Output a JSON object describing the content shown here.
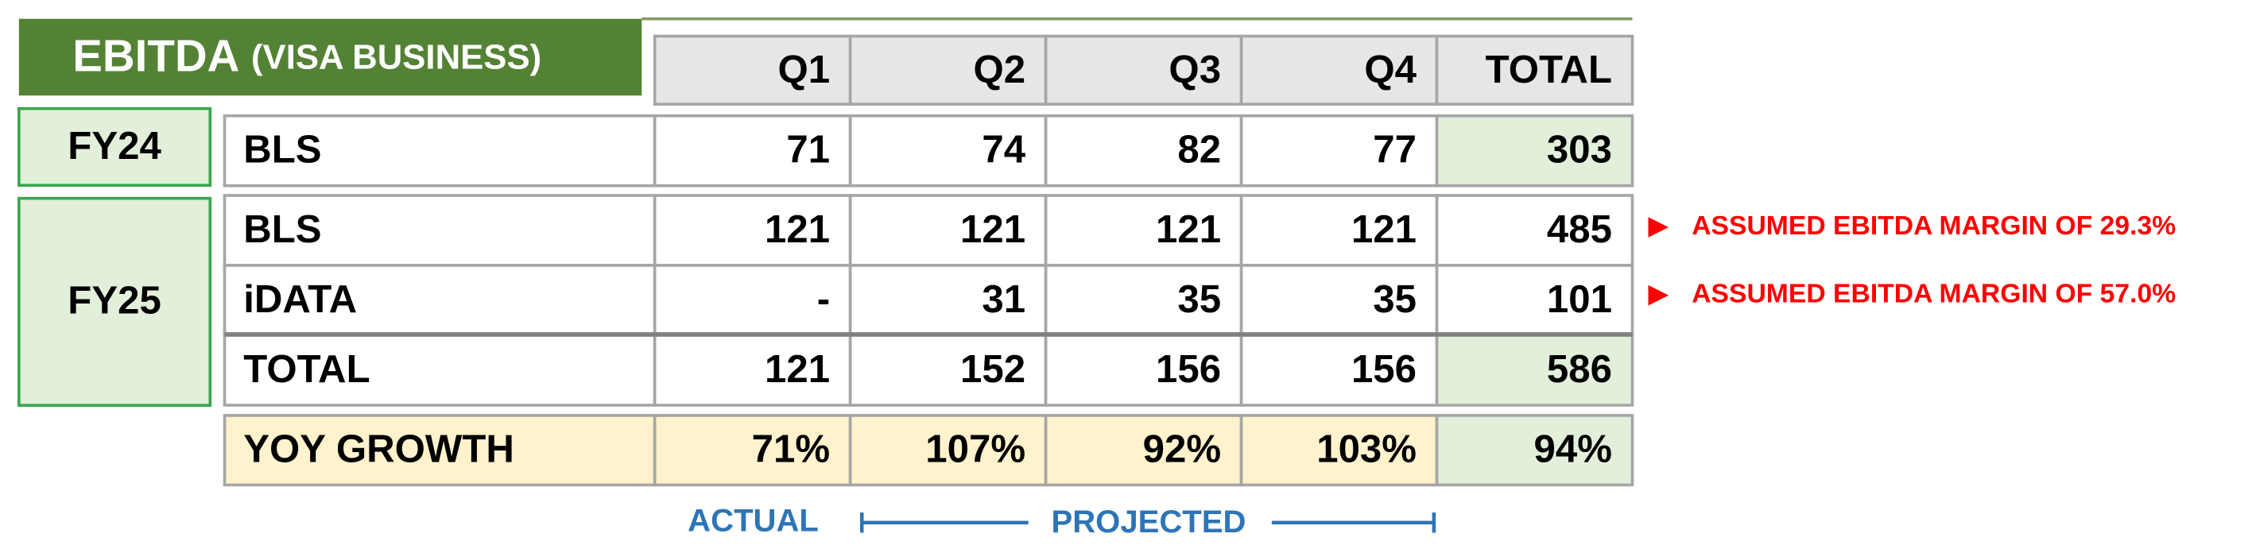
{
  "title": {
    "main": "EBITDA",
    "sub": "(VISA BUSINESS)"
  },
  "table": {
    "columns": [
      "Q1",
      "Q2",
      "Q3",
      "Q4",
      "TOTAL"
    ],
    "groups": [
      {
        "label": "FY24",
        "rows": [
          {
            "label": "BLS",
            "cells": [
              "71",
              "74",
              "82",
              "77",
              "303"
            ]
          }
        ]
      },
      {
        "label": "FY25",
        "rows": [
          {
            "label": "BLS",
            "cells": [
              "121",
              "121",
              "121",
              "121",
              "485"
            ]
          },
          {
            "label": "iDATA",
            "cells": [
              "-",
              "31",
              "35",
              "35",
              "101"
            ]
          },
          {
            "label": "TOTAL",
            "cells": [
              "121",
              "152",
              "156",
              "156",
              "586"
            ]
          }
        ]
      }
    ],
    "growth": {
      "label": "YOY GROWTH",
      "cells": [
        "71%",
        "107%",
        "92%",
        "103%",
        "94%"
      ]
    }
  },
  "notes": [
    "ASSUMED EBITDA MARGIN OF 29.3%",
    "ASSUMED EBITDA MARGIN OF 57.0%"
  ],
  "footer": {
    "actual": "ACTUAL",
    "projected": "PROJECTED"
  }
}
